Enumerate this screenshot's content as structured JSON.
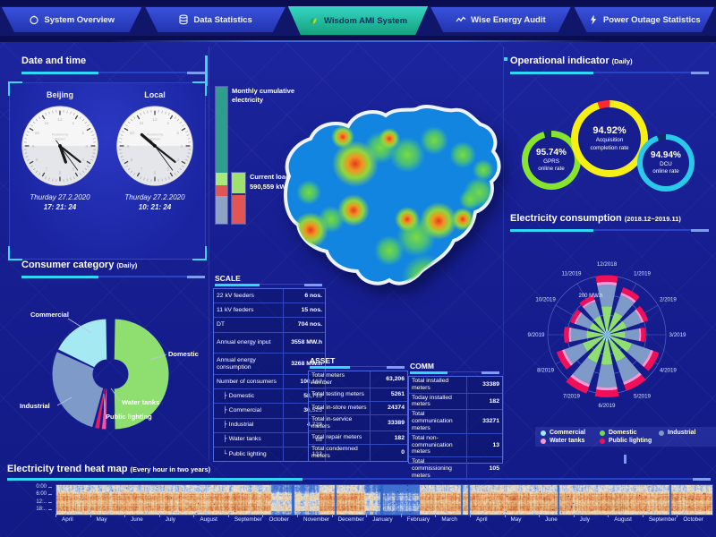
{
  "nav": {
    "active_tab": "Wisdom AMI System",
    "tabs": [
      {
        "label": "System Overview",
        "icon": "overview-icon"
      },
      {
        "label": "Data Statistics",
        "icon": "database-icon"
      },
      {
        "label": "Wisdom AMI System",
        "icon": "wisdom-leaf-logo-icon"
      },
      {
        "label": "Wise Energy Audit",
        "icon": "trend-wave-icon"
      },
      {
        "label": "Power Outage Statistics",
        "icon": "lightning-icon"
      }
    ]
  },
  "panels": {
    "datetime": {
      "title": "Date and time",
      "clocks": [
        {
          "city": "Beijing",
          "brand_line1": "Powered by",
          "brand_line2": "Wisdom",
          "date": "Thurday 27.2.2020",
          "time": "17: 21: 24"
        },
        {
          "city": "Local",
          "brand_line1": "Powered by",
          "brand_line2": "Wisdom",
          "date": "Thurday 27.2.2020",
          "time": "10: 21: 24"
        }
      ]
    },
    "consumer_category": {
      "title": "Consumer category",
      "subtitle": "(Daily)"
    },
    "monthly_bar": {
      "label": "Monthly cumulative electricity"
    },
    "current_load": {
      "label": "Current load",
      "value": "590,559 kW"
    },
    "scale_table": {
      "title": "SCALE",
      "rows": [
        {
          "label": "22 kV feeders",
          "value": "6 nos."
        },
        {
          "label": "11 kV feeders",
          "value": "15 nos."
        },
        {
          "label": "DT",
          "value": "704 nos."
        },
        {
          "label": "Annual energy input",
          "value": "3558 MW.h"
        },
        {
          "label": "Annual energy consumption",
          "value": "3268 MW.h"
        },
        {
          "label": "Number of consumers",
          "value": "100,167"
        },
        {
          "label": "├ Domestic",
          "value": "58,713"
        },
        {
          "label": "├ Commercial",
          "value": "36,525"
        },
        {
          "label": "├ Industrial",
          "value": "4,729"
        },
        {
          "label": "├ Water tanks",
          "value": "68"
        },
        {
          "label": "└ Public lighting",
          "value": "132"
        }
      ]
    },
    "asset_table": {
      "title": "ASSET",
      "rows": [
        {
          "label": "Total meters number",
          "value": "63,206"
        },
        {
          "label": "Total testing meters",
          "value": "5261"
        },
        {
          "label": "Total in-store meters",
          "value": "24374"
        },
        {
          "label": "Total in-service meters",
          "value": "33389"
        },
        {
          "label": "Total repair meters",
          "value": "182"
        },
        {
          "label": "Total condemned meters",
          "value": "0"
        }
      ]
    },
    "comm_table": {
      "title": "COMM",
      "rows": [
        {
          "label": "Total installed meters",
          "value": "33389"
        },
        {
          "label": "Today installed meters",
          "value": "182"
        },
        {
          "label": "Total communication meters",
          "value": "33271"
        },
        {
          "label": "Total non-communication meters",
          "value": "13"
        },
        {
          "label": "Total commissioning meters",
          "value": "105"
        }
      ]
    },
    "operational": {
      "title": "Operational indicator",
      "subtitle": "(Daily)",
      "gauges": [
        {
          "value": "95.74%",
          "label_line1": "GPRS",
          "label_line2": "online rate",
          "percent": 95.74,
          "color": "#86e32e",
          "remainder_color": "#0f2d62"
        },
        {
          "value": "94.92%",
          "label_line1": "Acquisition",
          "label_line2": "completion rate",
          "percent": 94.92,
          "color": "#f6ee14",
          "remainder_color": "#ff2a2a"
        },
        {
          "value": "94.94%",
          "label_line1": "DCU",
          "label_line2": "online rate",
          "percent": 94.94,
          "color": "#29c9ea",
          "remainder_color": "#0f2d62"
        }
      ]
    },
    "electricity_consumption": {
      "title": "Electricity consumption",
      "subtitle": "(2018.12~2019.11)",
      "radial_tick": "200 MW.h",
      "legend": [
        {
          "label": "Commercial",
          "color": "#a5e9f2"
        },
        {
          "label": "Domestic",
          "color": "#74dd4e"
        },
        {
          "label": "Industrial",
          "color": "#7d9ac9"
        },
        {
          "label": "Water tanks",
          "color": "#f79ad3"
        },
        {
          "label": "Public lighting",
          "color": "#f20f5a"
        }
      ]
    },
    "heatmap": {
      "title": "Electricity trend heat map",
      "subtitle": "(Every hour in two years)",
      "hour_labels": [
        "0:00",
        "6:00",
        "12:..",
        "18:.."
      ],
      "month_labels": [
        "April",
        "May",
        "June",
        "July",
        "August",
        "September",
        "October",
        "November",
        "December",
        "January",
        "February",
        "March",
        "April",
        "May",
        "June",
        "July",
        "August",
        "September",
        "October"
      ]
    }
  },
  "chart_data": [
    {
      "id": "consumer_pie",
      "type": "pie",
      "title": "Consumer category (Daily)",
      "labels": [
        "Domestic",
        "Water tanks",
        "Public lighting",
        "Industrial",
        "Commercial"
      ],
      "values": [
        50,
        2,
        2,
        28,
        18
      ],
      "colors": [
        "#8fdf70",
        "#ff4fa0",
        "#e81c5c",
        "#7d9ac9",
        "#a5e9f2"
      ],
      "donut": true,
      "exploded_slice": "Domestic"
    },
    {
      "id": "monthly_cumulative_bar",
      "type": "bar",
      "title": "Monthly cumulative electricity",
      "segments": [
        {
          "color": "#2f9e8e",
          "fraction": 0.63
        },
        {
          "color": "#a9e97b",
          "fraction": 0.09
        },
        {
          "color": "#e25555",
          "fraction": 0.075
        },
        {
          "color": "#8ea2c6",
          "fraction": 0.205
        }
      ]
    },
    {
      "id": "current_load_bar",
      "type": "bar",
      "title": "Current load 590,559 kW",
      "segments": [
        {
          "color": "#a0e06c",
          "fraction": 0.4
        },
        {
          "color": "#27356e",
          "fraction": 0.04
        },
        {
          "color": "#e25555",
          "fraction": 0.56
        }
      ]
    },
    {
      "id": "electricity_rose",
      "type": "polar-stacked-bar",
      "title": "Electricity consumption (2018.12~2019.11)",
      "categories": [
        "12/2018",
        "1/2019",
        "2/2019",
        "3/2019",
        "4/2019",
        "5/2019",
        "6/2019",
        "7/2019",
        "8/2019",
        "9/2019",
        "10/2019",
        "11/2019"
      ],
      "totals_mwh_est": [
        285,
        240,
        210,
        185,
        265,
        285,
        300,
        298,
        255,
        205,
        185,
        200
      ],
      "rmax_mwh": 300,
      "radial_tick_label": "200 MW.h",
      "series_order": [
        "Commercial",
        "Domestic",
        "Industrial",
        "Water tanks",
        "Public lighting"
      ],
      "series_radial_fractions": [
        0.1,
        0.38,
        0.36,
        0.05,
        0.11
      ],
      "colors": [
        "#a5e9f2",
        "#8fdf70",
        "#7d9ac9",
        "#f79ad3",
        "#f20f5a"
      ]
    },
    {
      "id": "trend_heatmap",
      "type": "heatmap",
      "title": "Electricity trend heat map (Every hour in two years)",
      "x_labels": [
        "April",
        "May",
        "June",
        "July",
        "August",
        "September",
        "October",
        "November",
        "December",
        "January",
        "February",
        "March",
        "April",
        "May",
        "June",
        "July",
        "August",
        "September",
        "October"
      ],
      "y_labels": [
        "0:00",
        "6:00",
        "12:..",
        "18:.."
      ],
      "palette": {
        "cool": "#4d7fd6",
        "neutral": "#f2ead6",
        "warm": "#e0914f",
        "hot": "#c2441f"
      }
    }
  ]
}
